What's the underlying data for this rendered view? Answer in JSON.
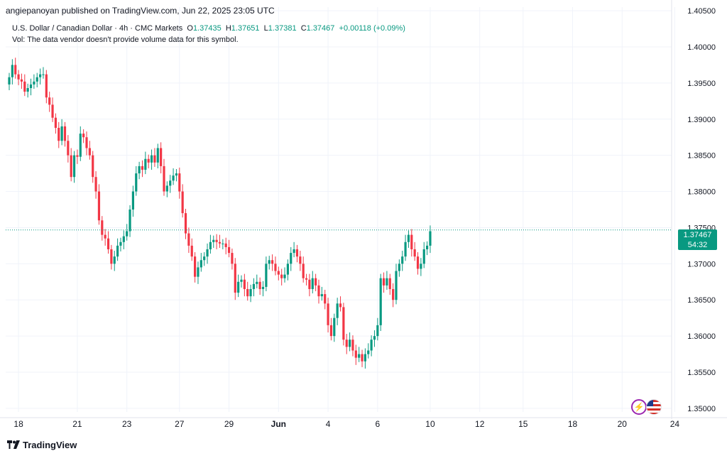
{
  "header": {
    "publish_line": "angiepanoyan published on TradingView.com, Jun 22, 2025 23:05 UTC"
  },
  "legend": {
    "symbol": "U.S. Dollar / Canadian Dollar · 4h · CMC Markets",
    "o_label": "O",
    "o_value": "1.37435",
    "h_label": "H",
    "h_value": "1.37651",
    "l_label": "L",
    "l_value": "1.37381",
    "c_label": "C",
    "c_value": "1.37467",
    "change": "+0.00118 (+0.09%)",
    "vol_text": "Vol: The data vendor doesn't provide volume data for this symbol."
  },
  "price_badge": {
    "price": "1.37467",
    "countdown": "54:32"
  },
  "footer": {
    "brand": "TradingView"
  },
  "icons": {
    "events": "lightning-icon",
    "country": "us-flag-icon"
  },
  "colors": {
    "up": "#089981",
    "down": "#f23645",
    "grid": "#f0f3fa",
    "axis_text": "#131722"
  },
  "chart_data": {
    "type": "candlestick",
    "title": "U.S. Dollar / Canadian Dollar · 4h · CMC Markets",
    "ylim": [
      1.3495,
      1.4055
    ],
    "y_ticks": [
      "1.40500",
      "1.40000",
      "1.39500",
      "1.39000",
      "1.38500",
      "1.38000",
      "1.37500",
      "1.37000",
      "1.36500",
      "1.36000",
      "1.35500",
      "1.35000"
    ],
    "x_ticks": [
      {
        "label": "18",
        "i": 3
      },
      {
        "label": "21",
        "i": 22
      },
      {
        "label": "23",
        "i": 38
      },
      {
        "label": "27",
        "i": 55
      },
      {
        "label": "29",
        "i": 71
      },
      {
        "label": "Jun",
        "i": 87
      },
      {
        "label": "4",
        "i": 103
      },
      {
        "label": "6",
        "i": 119
      },
      {
        "label": "10",
        "i": 136
      },
      {
        "label": "12",
        "i": 152
      },
      {
        "label": "15",
        "i": 166
      },
      {
        "label": "18",
        "i": 182
      },
      {
        "label": "20",
        "i": 198
      },
      {
        "label": "24",
        "i": 215
      }
    ],
    "last_price": 1.37467,
    "closes": [
      1.3958,
      1.3975,
      1.3962,
      1.3955,
      1.3952,
      1.3938,
      1.3943,
      1.3948,
      1.3952,
      1.3958,
      1.3962,
      1.3962,
      1.393,
      1.392,
      1.3902,
      1.3888,
      1.387,
      1.389,
      1.387,
      1.385,
      1.382,
      1.385,
      1.3848,
      1.388,
      1.3875,
      1.386,
      1.385,
      1.382,
      1.38,
      1.376,
      1.374,
      1.3735,
      1.372,
      1.37,
      1.371,
      1.3725,
      1.373,
      1.3738,
      1.3745,
      1.3775,
      1.38,
      1.3825,
      1.3835,
      1.383,
      1.3845,
      1.384,
      1.385,
      1.384,
      1.386,
      1.3835,
      1.38,
      1.3808,
      1.3815,
      1.3822,
      1.3825,
      1.38,
      1.377,
      1.3742,
      1.3725,
      1.371,
      1.3682,
      1.3695,
      1.3705,
      1.371,
      1.372,
      1.373,
      1.3733,
      1.373,
      1.3728,
      1.3728,
      1.3723,
      1.3715,
      1.37,
      1.366,
      1.3675,
      1.3678,
      1.3665,
      1.3655,
      1.3665,
      1.3672,
      1.3675,
      1.3665,
      1.3668,
      1.37,
      1.3705,
      1.37,
      1.369,
      1.3685,
      1.368,
      1.3685,
      1.37,
      1.3715,
      1.372,
      1.371,
      1.37,
      1.368,
      1.3678,
      1.3665,
      1.368,
      1.367,
      1.3655,
      1.3658,
      1.3645,
      1.3615,
      1.36,
      1.3625,
      1.3645,
      1.364,
      1.3595,
      1.3585,
      1.3595,
      1.358,
      1.357,
      1.3575,
      1.3565,
      1.3575,
      1.358,
      1.3595,
      1.36,
      1.3615,
      1.368,
      1.367,
      1.368,
      1.3665,
      1.365,
      1.369,
      1.37,
      1.371,
      1.373,
      1.374,
      1.372,
      1.371,
      1.3693,
      1.37,
      1.372,
      1.3725,
      1.3745
    ]
  }
}
